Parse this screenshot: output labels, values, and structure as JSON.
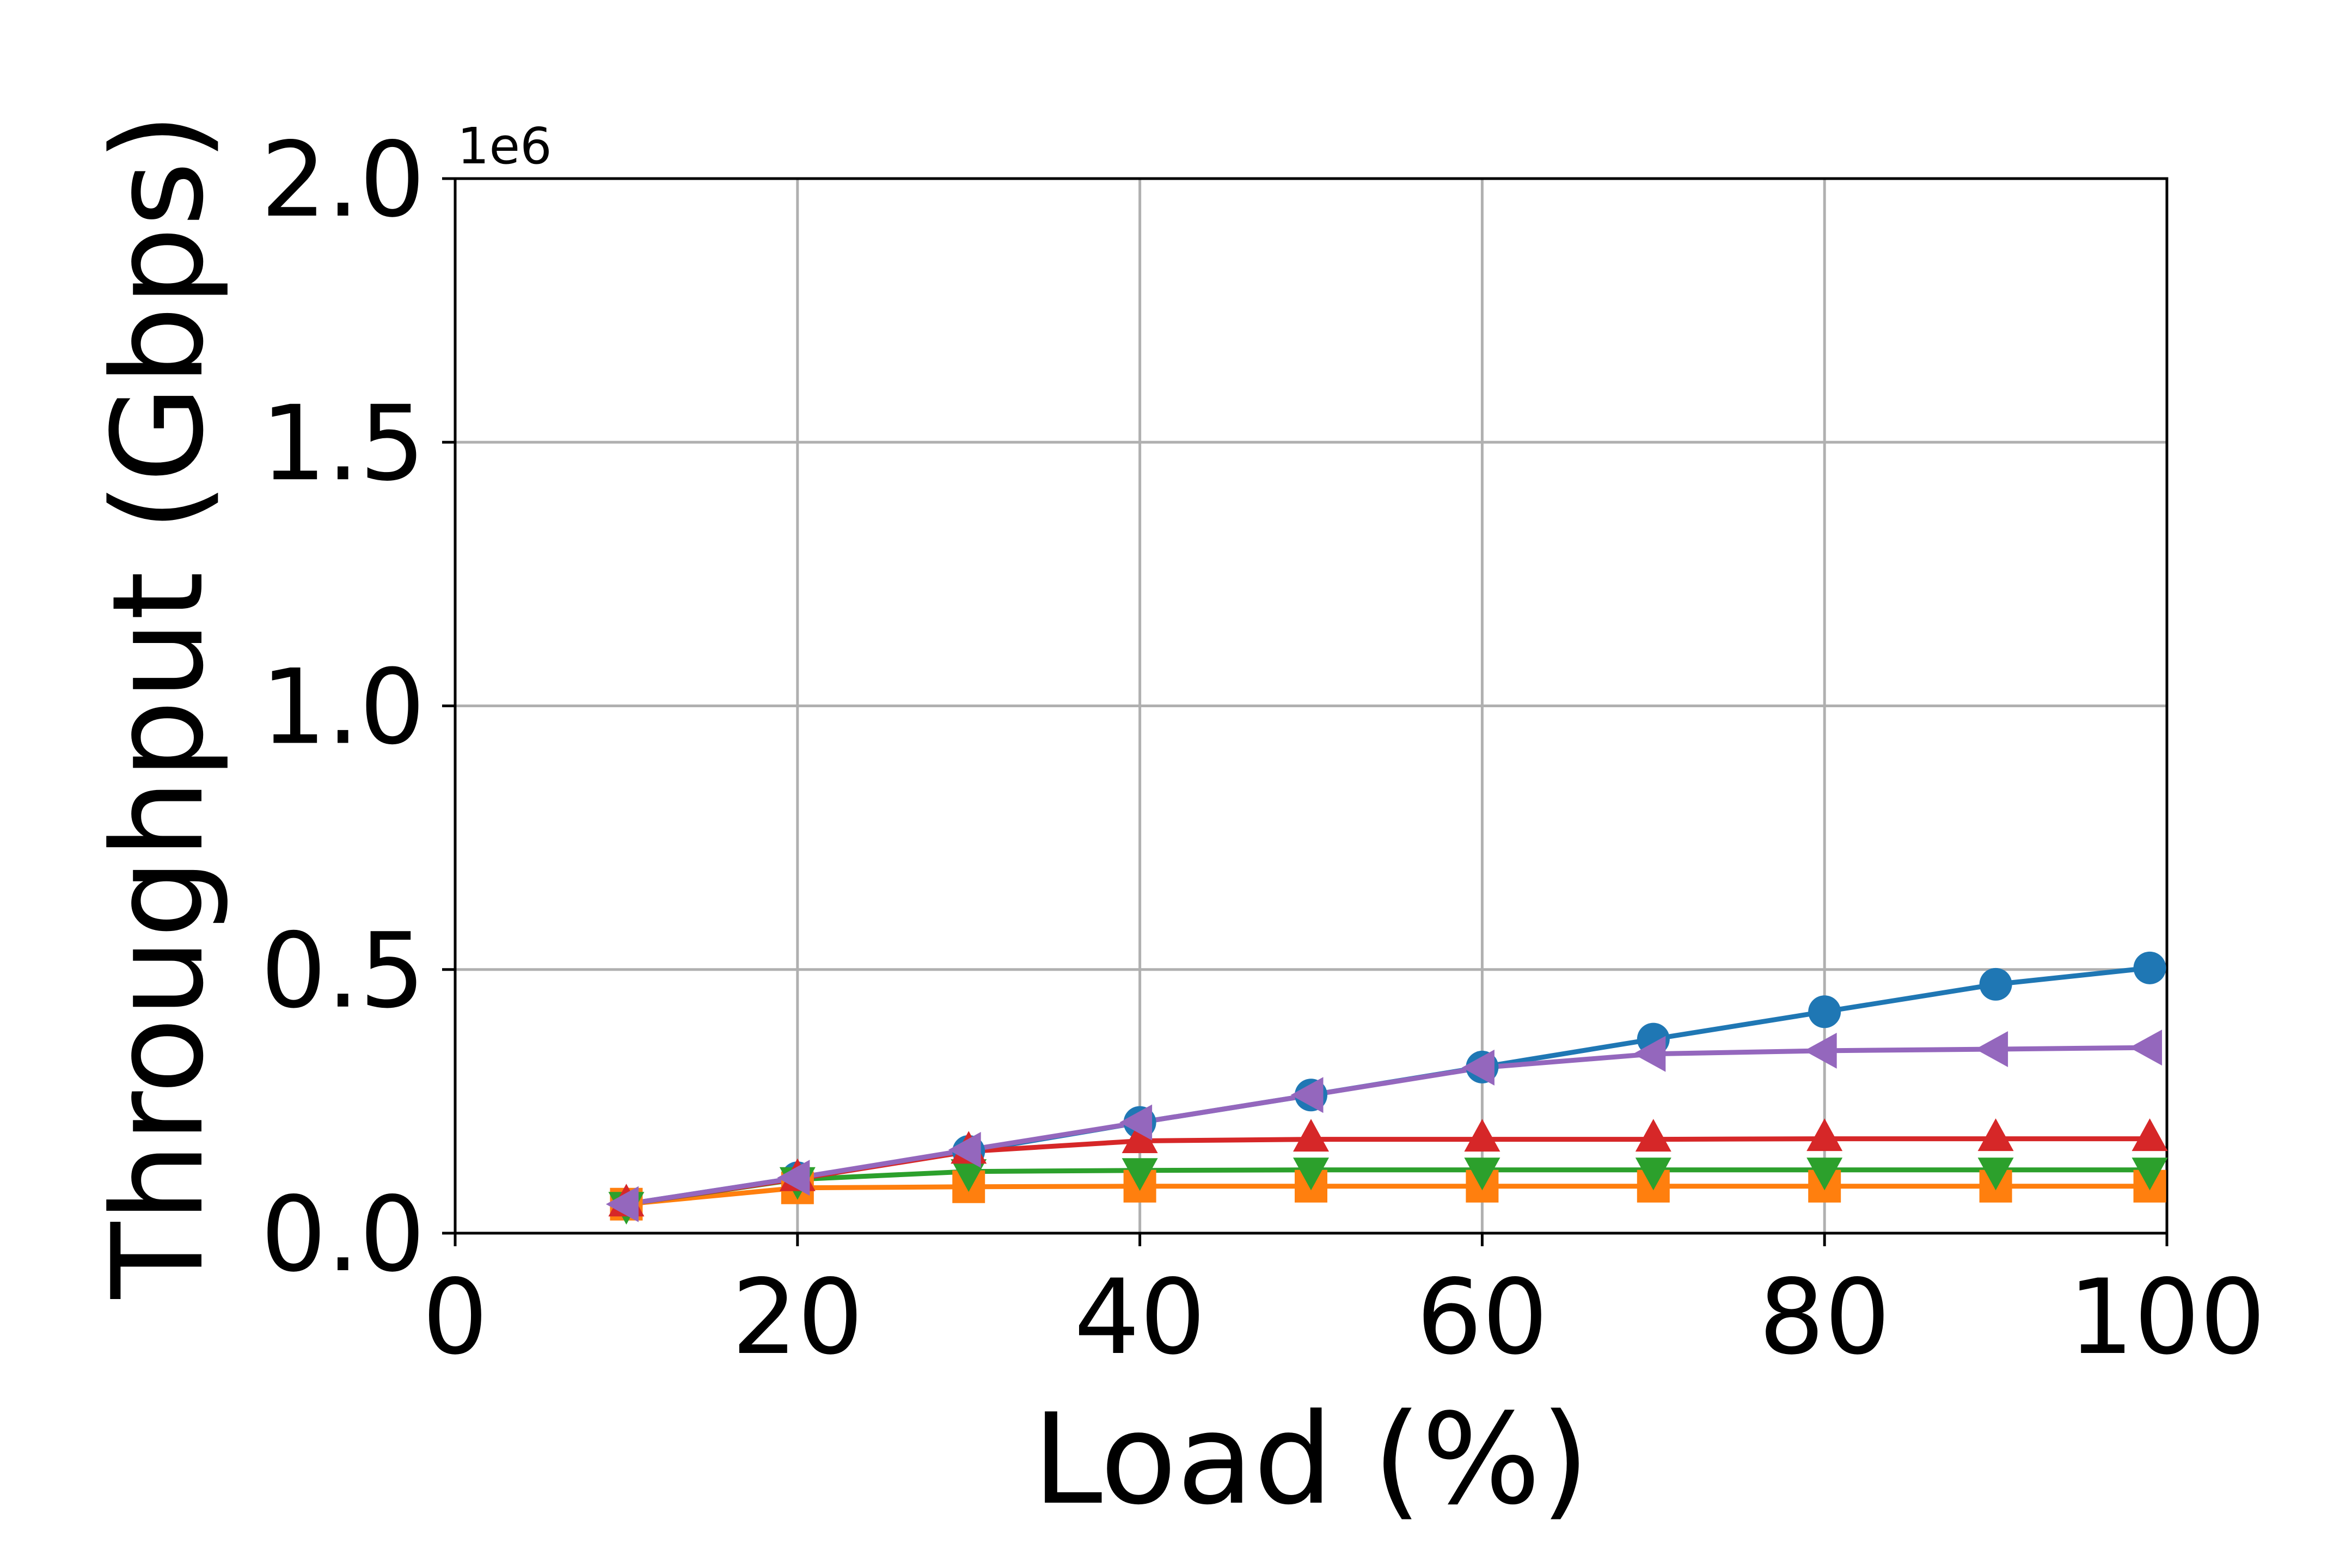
{
  "chart_data": {
    "type": "line",
    "xlabel": "Load (%)",
    "ylabel": "Throughput (Gbps)",
    "y_offset_label": "1e6",
    "xlim": [
      0,
      100
    ],
    "ylim": [
      0,
      2000000
    ],
    "grid": true,
    "x_ticks": [
      0,
      20,
      40,
      60,
      80,
      100
    ],
    "x_tick_labels": [
      "0",
      "20",
      "40",
      "60",
      "80",
      "100"
    ],
    "y_ticks": [
      0,
      500000,
      1000000,
      1500000,
      2000000
    ],
    "y_tick_labels": [
      "0.0",
      "0.5",
      "1.0",
      "1.5",
      "2.0"
    ],
    "x": [
      10,
      20,
      30,
      40,
      50,
      60,
      70,
      80,
      90,
      99
    ],
    "series": [
      {
        "color": "#1f77b4",
        "marker": "circle",
        "values": [
          55000,
          105000,
          155000,
          210000,
          262000,
          315000,
          368000,
          420000,
          472000,
          503000
        ]
      },
      {
        "color": "#ff7f0e",
        "marker": "square",
        "values": [
          55000,
          86000,
          88000,
          89000,
          89000,
          89000,
          89000,
          89000,
          89000,
          89000
        ]
      },
      {
        "color": "#2ca02c",
        "marker": "triangle-down",
        "values": [
          55000,
          102000,
          117000,
          119000,
          120000,
          120000,
          120000,
          120000,
          120000,
          120000
        ]
      },
      {
        "color": "#d62728",
        "marker": "triangle-up",
        "values": [
          55000,
          103000,
          155000,
          175000,
          178000,
          178000,
          178000,
          179000,
          179000,
          179000
        ]
      },
      {
        "color": "#9467bd",
        "marker": "triangle-left",
        "values": [
          55000,
          105000,
          158000,
          210000,
          262000,
          314000,
          340000,
          346000,
          349000,
          352000
        ]
      }
    ]
  }
}
